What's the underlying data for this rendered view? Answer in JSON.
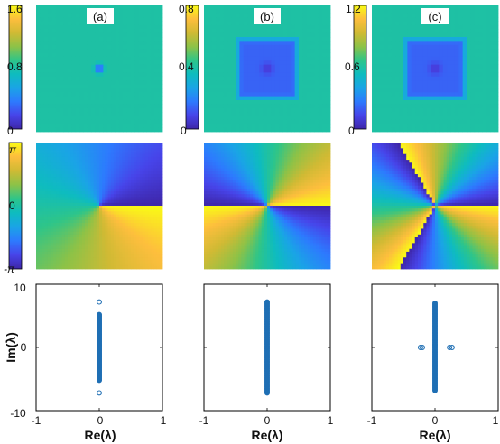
{
  "chart_data": [
    {
      "type": "heatmap",
      "row": "intensity",
      "panels": [
        {
          "label": "(a)",
          "colorbar_ticks": [
            "1.6",
            "0.8",
            "0"
          ],
          "clim": [
            0,
            1.6
          ],
          "dip": "single-point"
        },
        {
          "label": "(b)",
          "colorbar_ticks": [
            "0.8",
            "0.4",
            "0"
          ],
          "clim": [
            0,
            0.8
          ],
          "dip": "square-region"
        },
        {
          "label": "(c)",
          "colorbar_ticks": [
            "1.2",
            "0.6",
            "0"
          ],
          "clim": [
            0,
            1.2
          ],
          "dip": "square-region"
        }
      ]
    },
    {
      "type": "heatmap",
      "row": "phase",
      "colorbar_ticks": [
        "π",
        "0",
        "-π"
      ],
      "clim": [
        -3.1416,
        3.1416
      ],
      "panels": [
        {
          "vortex_charge": 1
        },
        {
          "vortex_charge": -2
        },
        {
          "vortex_charge": 3
        }
      ]
    },
    {
      "type": "scatter",
      "row": "spectrum",
      "xlabel": "Re(λ)",
      "ylabel": "Im(λ)",
      "xlim": [
        -1,
        1
      ],
      "ylim": [
        -10,
        10
      ],
      "xticks": [
        "-1",
        "0",
        "1"
      ],
      "yticks": [
        "10",
        "0",
        "-10"
      ],
      "marker_color": "#1f6fb4",
      "panels": [
        {
          "continuous_band": {
            "re": 0,
            "im_range": [
              -5.2,
              5.2
            ]
          },
          "discrete_points": [
            [
              0,
              7.2
            ],
            [
              0,
              -7.2
            ]
          ]
        },
        {
          "continuous_band": {
            "re": 0,
            "im_range": [
              -7.2,
              7.2
            ]
          },
          "discrete_points": []
        },
        {
          "continuous_band": {
            "re": 0,
            "im_range": [
              -6.8,
              7.0
            ]
          },
          "discrete_points": [
            [
              -0.23,
              0
            ],
            [
              -0.2,
              0
            ],
            [
              0.23,
              0
            ],
            [
              0.27,
              0
            ]
          ]
        }
      ]
    }
  ],
  "colors": {
    "colormap": [
      "#3e26a8",
      "#4744e9",
      "#2d7afe",
      "#1aa4e6",
      "#0ebcbf",
      "#2ec589",
      "#8dc247",
      "#d0ba34",
      "#fdbe3d",
      "#f9fb15"
    ]
  }
}
